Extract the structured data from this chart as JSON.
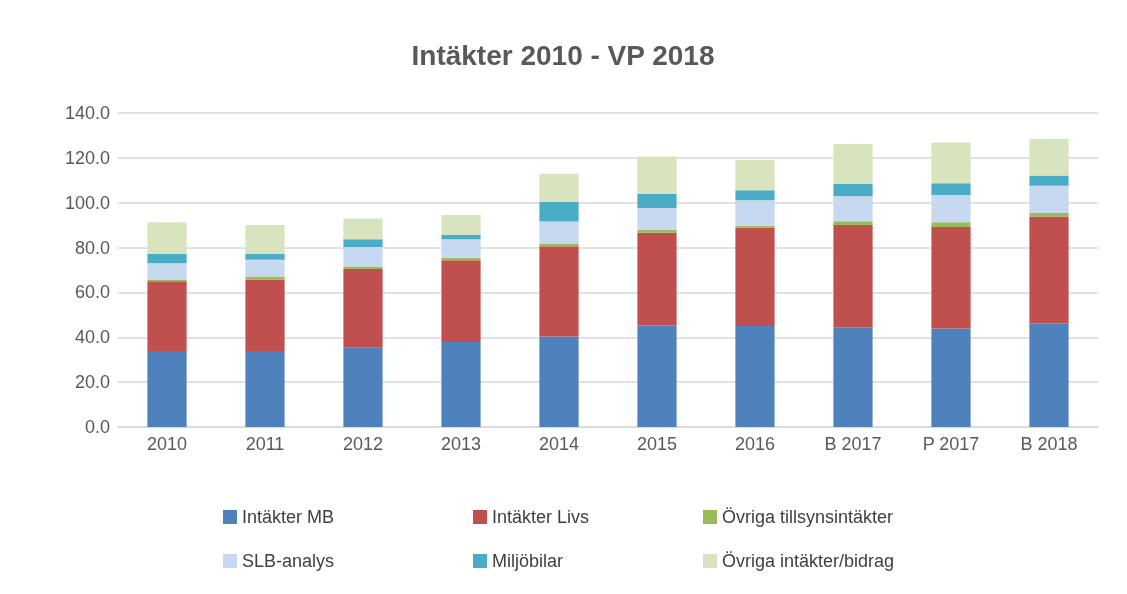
{
  "chart_data": {
    "type": "bar",
    "title": "Intäkter 2010 - VP 2018",
    "stacked": true,
    "grid": "y",
    "legend": "bottom",
    "categories": [
      "2010",
      "2011",
      "2012",
      "2013",
      "2014",
      "2015",
      "2016",
      "B 2017",
      "P 2017",
      "B 2018"
    ],
    "ylim": [
      0,
      140
    ],
    "yticks": [
      {
        "value": 0,
        "label": "0.0"
      },
      {
        "value": 20,
        "label": "20.0"
      },
      {
        "value": 40,
        "label": "40.0"
      },
      {
        "value": 60,
        "label": "60.0"
      },
      {
        "value": 80,
        "label": "80.0"
      },
      {
        "value": 100,
        "label": "100.0"
      },
      {
        "value": 120,
        "label": "120.0"
      },
      {
        "value": 140,
        "label": "140.0"
      }
    ],
    "series": [
      {
        "name": "Intäkter MB",
        "color": "#4f81bd",
        "values": [
          33.9,
          33.9,
          35.3,
          37.9,
          40.3,
          45.3,
          45.0,
          44.5,
          43.9,
          46.1
        ]
      },
      {
        "name": "Intäkter Livs",
        "color": "#c0504d",
        "values": [
          31.1,
          31.9,
          35.2,
          36.4,
          40.3,
          41.3,
          43.8,
          45.6,
          45.3,
          47.7
        ]
      },
      {
        "name": "Övriga tillsynsintäkter",
        "color": "#9bbb59",
        "values": [
          0.8,
          1.3,
          1.1,
          1.2,
          1.2,
          1.4,
          0.9,
          1.6,
          2.1,
          1.6
        ]
      },
      {
        "name": "SLB-analys",
        "color": "#c6d9f1",
        "values": [
          7.2,
          7.5,
          8.7,
          8.2,
          9.8,
          9.6,
          11.4,
          11.2,
          12.1,
          12.2
        ]
      },
      {
        "name": "Miljöbilar",
        "color": "#4bacc6",
        "values": [
          4.3,
          2.7,
          3.4,
          2.0,
          8.7,
          6.4,
          4.5,
          5.5,
          5.3,
          4.5
        ]
      },
      {
        "name": "Övriga intäkter/bidrag",
        "color": "#d7e4bd",
        "values": [
          14.0,
          12.8,
          9.3,
          8.8,
          12.6,
          16.6,
          13.4,
          17.8,
          18.1,
          16.3
        ]
      }
    ]
  }
}
